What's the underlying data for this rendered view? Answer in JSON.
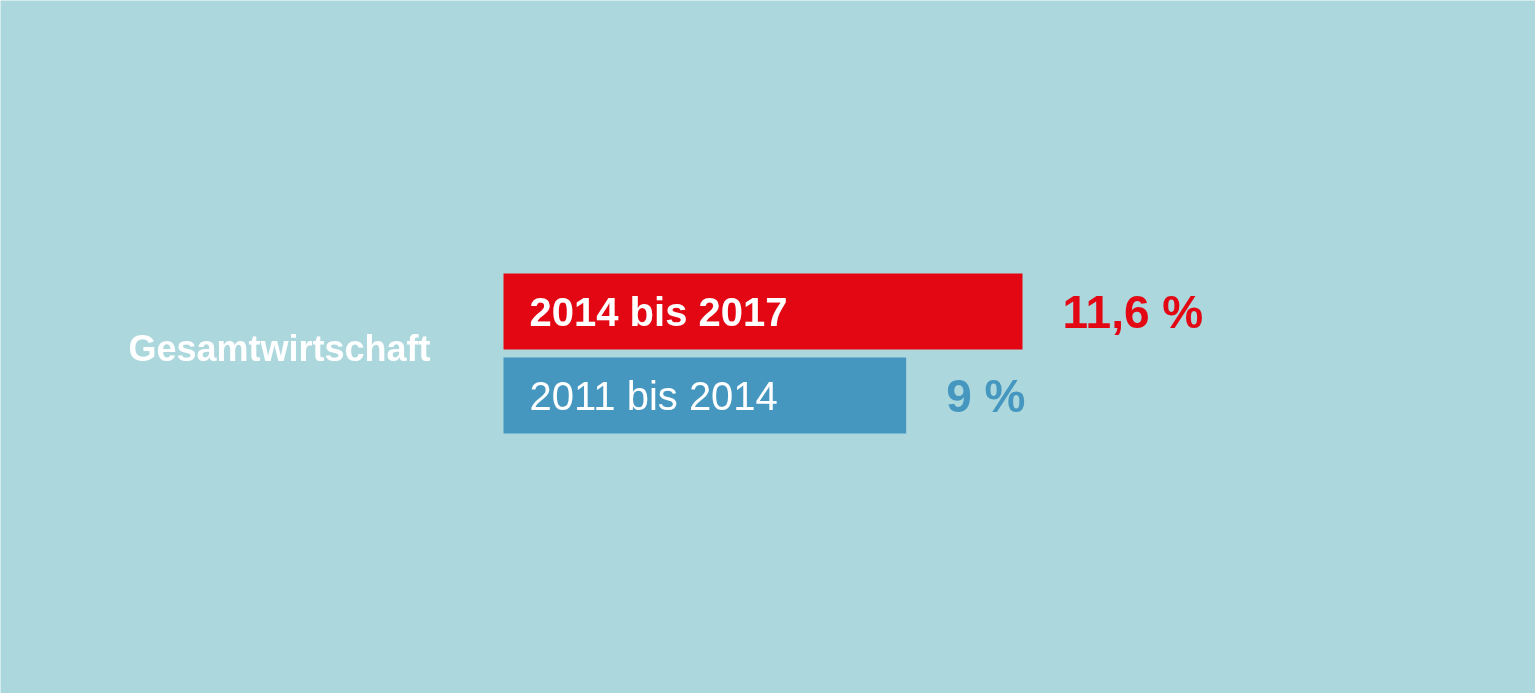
{
  "chart_data": {
    "type": "bar",
    "orientation": "horizontal",
    "title": "Gesamtwirtschaft",
    "categories": [
      "2014 bis 2017",
      "2011 bis 2014"
    ],
    "values": [
      11.6,
      9
    ],
    "colors": [
      "#e30613",
      "#4597c0"
    ],
    "value_labels": [
      "11,6 %",
      "9 %"
    ]
  }
}
